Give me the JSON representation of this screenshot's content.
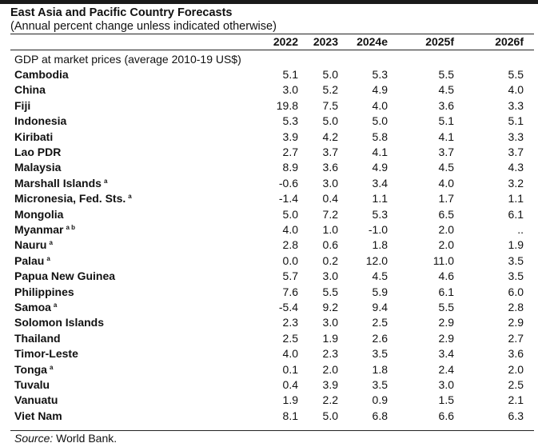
{
  "title": "East Asia and Pacific Country Forecasts",
  "subtitle": "(Annual percent change unless indicated otherwise)",
  "columns": [
    "2022",
    "2023",
    "2024e",
    "2025f",
    "2026f"
  ],
  "section_label": "GDP at market prices (average 2010-19 US$)",
  "rows": [
    {
      "country": "Cambodia",
      "note": "",
      "values": [
        "5.1",
        "5.0",
        "5.3",
        "5.5",
        "5.5"
      ]
    },
    {
      "country": "China",
      "note": "",
      "values": [
        "3.0",
        "5.2",
        "4.9",
        "4.5",
        "4.0"
      ]
    },
    {
      "country": "Fiji",
      "note": "",
      "values": [
        "19.8",
        "7.5",
        "4.0",
        "3.6",
        "3.3"
      ]
    },
    {
      "country": "Indonesia",
      "note": "",
      "values": [
        "5.3",
        "5.0",
        "5.0",
        "5.1",
        "5.1"
      ]
    },
    {
      "country": "Kiribati",
      "note": "",
      "values": [
        "3.9",
        "4.2",
        "5.8",
        "4.1",
        "3.3"
      ]
    },
    {
      "country": "Lao PDR",
      "note": "",
      "values": [
        "2.7",
        "3.7",
        "4.1",
        "3.7",
        "3.7"
      ]
    },
    {
      "country": "Malaysia",
      "note": "",
      "values": [
        "8.9",
        "3.6",
        "4.9",
        "4.5",
        "4.3"
      ]
    },
    {
      "country": "Marshall Islands",
      "note": "a",
      "values": [
        "-0.6",
        "3.0",
        "3.4",
        "4.0",
        "3.2"
      ]
    },
    {
      "country": "Micronesia, Fed. Sts.",
      "note": "a",
      "values": [
        "-1.4",
        "0.4",
        "1.1",
        "1.7",
        "1.1"
      ]
    },
    {
      "country": "Mongolia",
      "note": "",
      "values": [
        "5.0",
        "7.2",
        "5.3",
        "6.5",
        "6.1"
      ]
    },
    {
      "country": "Myanmar",
      "note": "a b",
      "values": [
        "4.0",
        "1.0",
        "-1.0",
        "2.0",
        ".."
      ]
    },
    {
      "country": "Nauru",
      "note": "a",
      "values": [
        "2.8",
        "0.6",
        "1.8",
        "2.0",
        "1.9"
      ]
    },
    {
      "country": "Palau",
      "note": "a",
      "values": [
        "0.0",
        "0.2",
        "12.0",
        "11.0",
        "3.5"
      ]
    },
    {
      "country": "Papua New Guinea",
      "note": "",
      "values": [
        "5.7",
        "3.0",
        "4.5",
        "4.6",
        "3.5"
      ]
    },
    {
      "country": "Philippines",
      "note": "",
      "values": [
        "7.6",
        "5.5",
        "5.9",
        "6.1",
        "6.0"
      ]
    },
    {
      "country": "Samoa",
      "note": "a",
      "values": [
        "-5.4",
        "9.2",
        "9.4",
        "5.5",
        "2.8"
      ]
    },
    {
      "country": "Solomon Islands",
      "note": "",
      "values": [
        "2.3",
        "3.0",
        "2.5",
        "2.9",
        "2.9"
      ]
    },
    {
      "country": "Thailand",
      "note": "",
      "values": [
        "2.5",
        "1.9",
        "2.6",
        "2.9",
        "2.7"
      ]
    },
    {
      "country": "Timor-Leste",
      "note": "",
      "values": [
        "4.0",
        "2.3",
        "3.5",
        "3.4",
        "3.6"
      ]
    },
    {
      "country": "Tonga",
      "note": "a",
      "values": [
        "0.1",
        "2.0",
        "1.8",
        "2.4",
        "2.0"
      ]
    },
    {
      "country": "Tuvalu",
      "note": "",
      "values": [
        "0.4",
        "3.9",
        "3.5",
        "3.0",
        "2.5"
      ]
    },
    {
      "country": "Vanuatu",
      "note": "",
      "values": [
        "1.9",
        "2.2",
        "0.9",
        "1.5",
        "2.1"
      ]
    },
    {
      "country": "Viet Nam",
      "note": "",
      "values": [
        "8.1",
        "5.0",
        "6.8",
        "6.6",
        "6.3"
      ]
    }
  ],
  "source_label": "Source:",
  "source_text": " World Bank."
}
